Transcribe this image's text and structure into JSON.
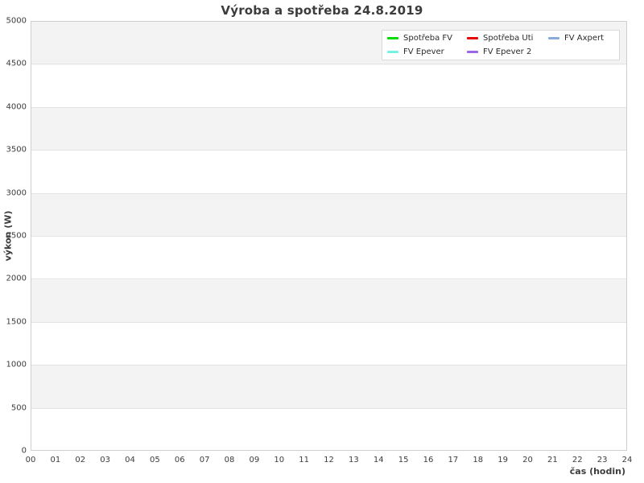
{
  "chart_data": {
    "type": "line",
    "title": "Výroba a spotřeba 24.8.2019",
    "xlabel": "čas (hodin)",
    "ylabel": "výkon (W)",
    "xlim": [
      0,
      24
    ],
    "ylim": [
      0,
      5000
    ],
    "xtick_labels": [
      "00",
      "01",
      "02",
      "03",
      "04",
      "05",
      "06",
      "07",
      "08",
      "09",
      "10",
      "11",
      "12",
      "13",
      "14",
      "15",
      "16",
      "17",
      "18",
      "19",
      "20",
      "21",
      "22",
      "23",
      "24"
    ],
    "ytick_values": [
      0,
      500,
      1000,
      1500,
      2000,
      2500,
      3000,
      3500,
      4000,
      4500,
      5000
    ],
    "grid": "alternating horizontal bands every 500 W, gray band at top",
    "band_colors": [
      "#f3f3f3",
      "#ffffff"
    ],
    "legend_position": "top-right",
    "series": [
      {
        "name": "Spotřeba FV",
        "color": "#00dd00",
        "x": [],
        "values": []
      },
      {
        "name": "Spotřeba Uti",
        "color": "#e60000",
        "x": [],
        "values": []
      },
      {
        "name": "FV Axpert",
        "color": "#88aadd",
        "x": [],
        "values": []
      },
      {
        "name": "FV Epever",
        "color": "#77f2e2",
        "x": [],
        "values": []
      },
      {
        "name": "FV Epever 2",
        "color": "#9966e6",
        "x": [],
        "values": []
      }
    ],
    "note": "No data points are drawn; the plot area is empty."
  }
}
